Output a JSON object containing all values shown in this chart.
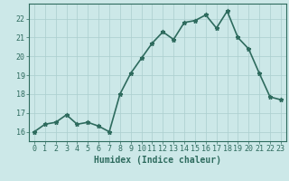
{
  "xlabel": "Humidex (Indice chaleur)",
  "ylabel": "",
  "x": [
    0,
    1,
    2,
    3,
    4,
    5,
    6,
    7,
    8,
    9,
    10,
    11,
    12,
    13,
    14,
    15,
    16,
    17,
    18,
    19,
    20,
    21,
    22,
    23
  ],
  "y": [
    16.0,
    16.4,
    16.5,
    16.9,
    16.4,
    16.5,
    16.3,
    16.0,
    18.0,
    19.1,
    19.9,
    20.7,
    21.3,
    20.9,
    21.8,
    21.9,
    22.2,
    21.5,
    22.4,
    21.0,
    20.4,
    19.1,
    17.85,
    17.7
  ],
  "line_color": "#2e6b5e",
  "marker": "*",
  "bg_color": "#cce8e8",
  "grid_color": "#aacece",
  "axis_color": "#2e6b5e",
  "tick_color": "#2e6b5e",
  "label_color": "#2e6b5e",
  "ylim": [
    15.5,
    22.8
  ],
  "yticks": [
    16,
    17,
    18,
    19,
    20,
    21,
    22
  ],
  "xticks": [
    0,
    1,
    2,
    3,
    4,
    5,
    6,
    7,
    8,
    9,
    10,
    11,
    12,
    13,
    14,
    15,
    16,
    17,
    18,
    19,
    20,
    21,
    22,
    23
  ],
  "xlabel_fontsize": 7,
  "tick_fontsize": 6,
  "linewidth": 1.2,
  "markersize": 3.5
}
